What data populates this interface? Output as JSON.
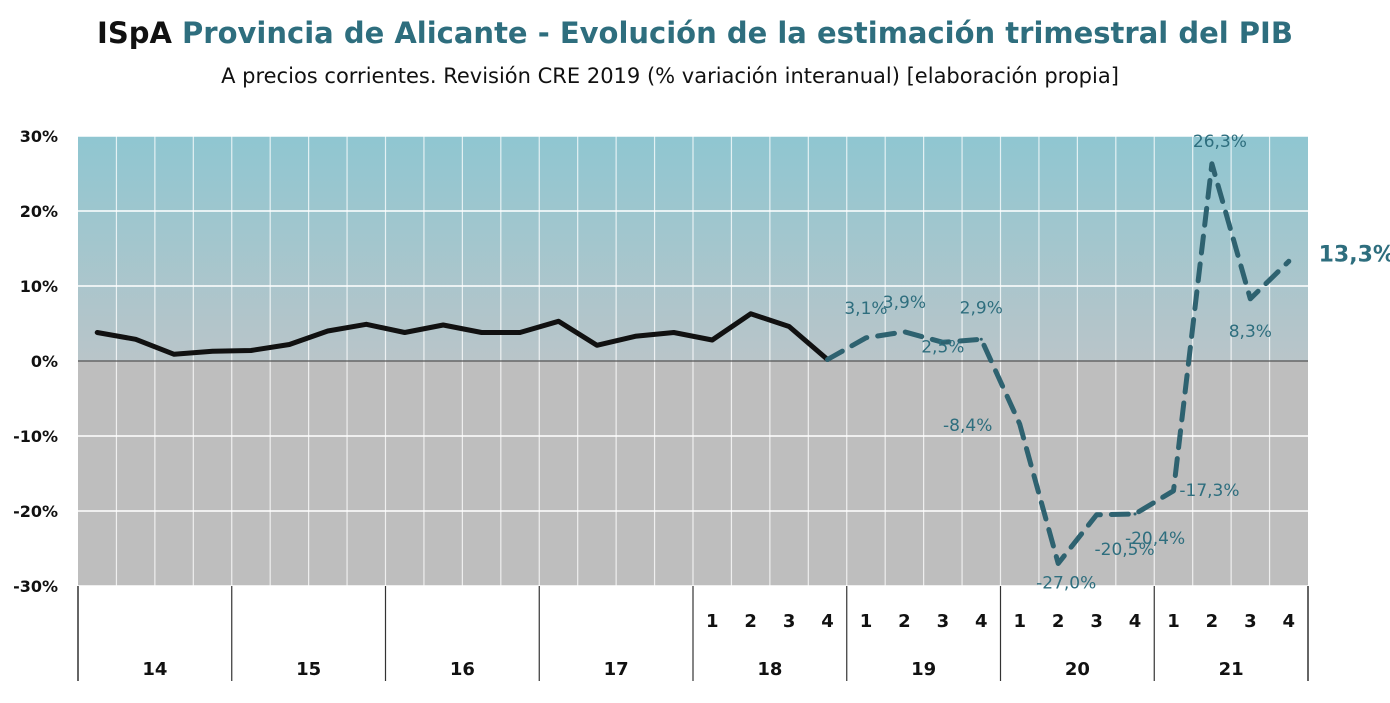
{
  "header": {
    "brand": "ISpA",
    "title": "Provincia de Alicante - Evolución de la estimación trimestral del PIB",
    "subtitle": "A precios corrientes. Revisión CRE 2019 (% variación interanual) [elaboración propia]"
  },
  "colors": {
    "plot_top": "#8fc6d1",
    "plot_mid": "#b9c5c9",
    "plot_bottom": "#bebebe",
    "actual_line": "#111111",
    "estimate_line": "#2e6270",
    "label": "#2e6e7e"
  },
  "chart_data": {
    "type": "line",
    "ylim": [
      -30,
      30
    ],
    "yticks": [
      30,
      20,
      10,
      0,
      -10,
      -20,
      -30
    ],
    "ytick_labels": [
      "30%",
      "20%",
      "10%",
      "0%",
      "-10%",
      "-20%",
      "-30%"
    ],
    "grid": true,
    "quarters_per_year": 4,
    "years": [
      {
        "label": "14",
        "quarter_labels": [
          "",
          "",
          "",
          ""
        ]
      },
      {
        "label": "15",
        "quarter_labels": [
          "",
          "",
          "",
          ""
        ]
      },
      {
        "label": "16",
        "quarter_labels": [
          "",
          "",
          "",
          ""
        ]
      },
      {
        "label": "17",
        "quarter_labels": [
          "",
          "",
          "",
          ""
        ]
      },
      {
        "label": "18",
        "quarter_labels": [
          "1",
          "2",
          "3",
          "4"
        ]
      },
      {
        "label": "19",
        "quarter_labels": [
          "1",
          "2",
          "3",
          "4"
        ]
      },
      {
        "label": "20",
        "quarter_labels": [
          "1",
          "2",
          "3",
          "4"
        ]
      },
      {
        "label": "21",
        "quarter_labels": [
          "1",
          "2",
          "3",
          "4"
        ]
      }
    ],
    "series": [
      {
        "style": "solid",
        "start_index": 0,
        "values": [
          3.8,
          2.9,
          0.9,
          1.3,
          1.4,
          2.2,
          4.0,
          4.9,
          3.8,
          4.8,
          3.8,
          3.8,
          5.3,
          2.1,
          3.3,
          3.8,
          2.8,
          6.3,
          4.6,
          0.2
        ]
      },
      {
        "style": "dashed",
        "start_index": 19,
        "values": [
          0.2,
          3.1,
          3.9,
          2.5,
          2.9,
          -8.4,
          -27.0,
          -20.5,
          -20.4,
          -17.3,
          26.3,
          8.3,
          13.3
        ],
        "labels": [
          "",
          "3,1%",
          "3,9%",
          "2,5%",
          "2,9%",
          "-8,4%",
          "-27,0%",
          "-20,5%",
          "-20,4%",
          "-17,3%",
          "26,3%",
          "8,3%",
          "13,3%"
        ]
      }
    ]
  }
}
